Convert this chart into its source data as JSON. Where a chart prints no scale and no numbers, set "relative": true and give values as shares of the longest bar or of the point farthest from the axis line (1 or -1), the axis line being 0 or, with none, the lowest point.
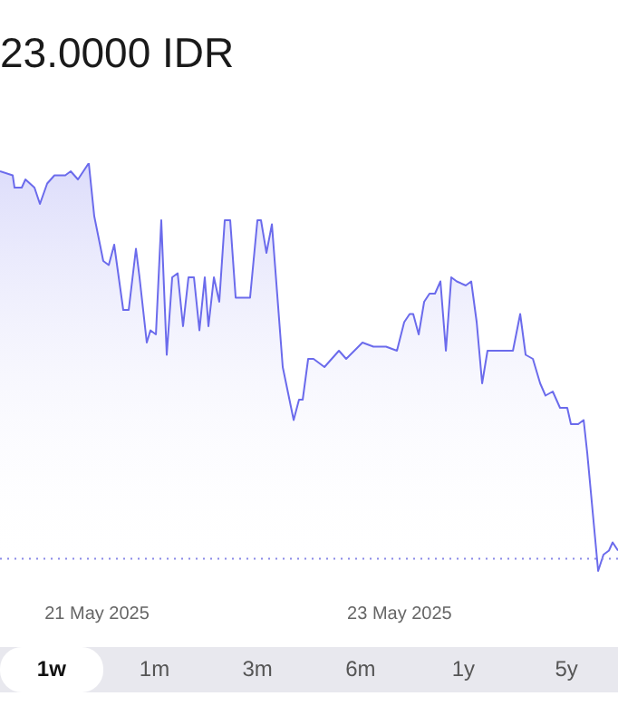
{
  "chart_data": {
    "type": "area",
    "title": "23.0000 IDR",
    "relative": true,
    "color": "#6b6bec",
    "line_style": "solid",
    "marker": "none",
    "grid": false,
    "x": [
      "2025-05-20T08:46",
      "2025-05-20T10:47",
      "2025-05-20T11:04",
      "2025-05-20T12:13",
      "2025-05-20T12:48",
      "2025-05-20T14:14",
      "2025-05-20T15:06",
      "2025-05-20T16:15",
      "2025-05-20T17:24",
      "2025-05-20T18:15",
      "2025-05-20T19:07",
      "2025-05-20T19:59",
      "2025-05-20T21:08",
      "2025-05-20T22:51",
      "2025-05-20T23:43",
      "2025-05-21T01:09",
      "2025-05-21T02:01",
      "2025-05-21T02:53",
      "2025-05-21T04:19",
      "2025-05-21T05:11",
      "2025-05-21T06:20",
      "2025-05-21T06:54",
      "2025-05-21T08:03",
      "2025-05-21T08:38",
      "2025-05-21T09:30",
      "2025-05-21T10:21",
      "2025-05-21T11:13",
      "2025-05-21T12:05",
      "2025-05-21T12:57",
      "2025-05-21T13:48",
      "2025-05-21T14:40",
      "2025-05-21T15:32",
      "2025-05-21T16:24",
      "2025-05-21T17:15",
      "2025-05-21T17:50",
      "2025-05-21T18:42",
      "2025-05-21T19:33",
      "2025-05-21T20:25",
      "2025-05-21T21:17",
      "2025-05-21T22:09",
      "2025-05-22T00:26",
      "2025-05-22T01:36",
      "2025-05-22T02:10",
      "2025-05-22T03:02",
      "2025-05-22T03:54",
      "2025-05-22T05:37",
      "2025-05-22T07:21",
      "2025-05-22T08:12",
      "2025-05-22T08:47",
      "2025-05-22T09:39",
      "2025-05-22T10:30",
      "2025-05-22T12:14",
      "2025-05-22T14:32",
      "2025-05-22T15:41",
      "2025-05-22T18:16",
      "2025-05-22T20:00",
      "2025-05-22T22:00",
      "2025-05-22T23:44",
      "2025-05-23T00:53",
      "2025-05-23T01:45",
      "2025-05-23T02:19",
      "2025-05-23T03:11",
      "2025-05-23T04:03",
      "2025-05-23T04:54",
      "2025-05-23T05:46",
      "2025-05-23T06:38",
      "2025-05-23T07:30",
      "2025-05-23T08:21",
      "2025-05-23T09:13",
      "2025-05-23T10:39",
      "2025-05-23T11:31",
      "2025-05-23T12:23",
      "2025-05-23T13:15",
      "2025-05-23T14:06",
      "2025-05-23T18:08",
      "2025-05-23T19:17",
      "2025-05-23T20:09",
      "2025-05-23T21:18",
      "2025-05-23T22:27",
      "2025-05-23T23:18",
      "2025-05-24T00:27",
      "2025-05-24T01:36",
      "2025-05-24T02:45",
      "2025-05-24T03:20",
      "2025-05-24T04:29",
      "2025-05-24T05:21",
      "2025-05-24T05:55",
      "2025-05-24T07:39",
      "2025-05-24T08:30",
      "2025-05-24T09:22",
      "2025-05-24T09:57",
      "2025-05-24T10:48"
    ],
    "values": [
      0.98,
      0.97,
      0.94,
      0.94,
      0.96,
      0.94,
      0.9,
      0.95,
      0.97,
      0.97,
      0.97,
      0.98,
      0.96,
      1,
      0.87,
      0.76,
      0.75,
      0.8,
      0.64,
      0.64,
      0.79,
      0.72,
      0.56,
      0.59,
      0.58,
      0.86,
      0.53,
      0.72,
      0.73,
      0.6,
      0.72,
      0.72,
      0.59,
      0.72,
      0.6,
      0.72,
      0.66,
      0.86,
      0.86,
      0.67,
      0.67,
      0.86,
      0.86,
      0.78,
      0.85,
      0.5,
      0.37,
      0.42,
      0.42,
      0.52,
      0.52,
      0.5,
      0.54,
      0.52,
      0.56,
      0.55,
      0.55,
      0.54,
      0.61,
      0.63,
      0.63,
      0.58,
      0.66,
      0.68,
      0.68,
      0.71,
      0.54,
      0.72,
      0.71,
      0.7,
      0.71,
      0.61,
      0.46,
      0.54,
      0.54,
      0.63,
      0.53,
      0.52,
      0.46,
      0.43,
      0.44,
      0.4,
      0.4,
      0.36,
      0.36,
      0.37,
      0.29,
      0,
      0.04,
      0.05,
      0.07,
      0.05
    ],
    "xlim": [
      "2025-05-20T08:46",
      "2025-05-24T10:48"
    ],
    "xticks": [
      {
        "value": "2025-05-21",
        "label": "21 May 2025"
      },
      {
        "value": "2025-05-23",
        "label": "23 May 2025"
      }
    ],
    "ref_lines": [
      {
        "axis": "y",
        "value": 0.03,
        "line_style": "dotted",
        "color": "#8a8ae8"
      }
    ],
    "annotations": [
      "1w",
      "1m",
      "3m",
      "6m",
      "1y",
      "5y"
    ]
  }
}
